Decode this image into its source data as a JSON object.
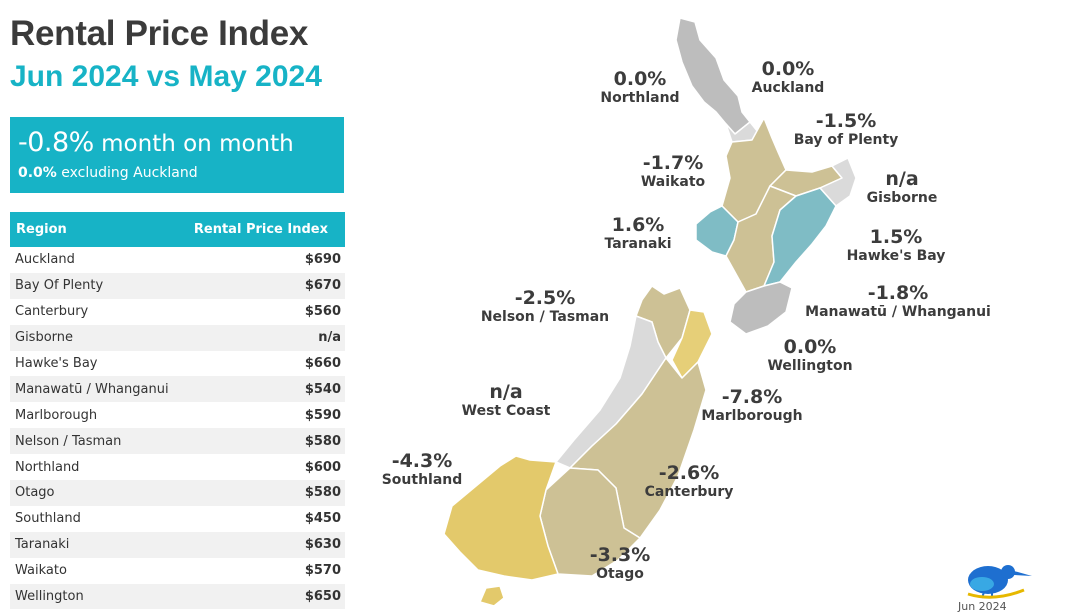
{
  "header": {
    "title": "Rental Price Index",
    "subtitle": "Jun 2024 vs May 2024"
  },
  "summary": {
    "change": "-0.8%",
    "change_suffix": " month on month",
    "excl_value": "0.0%",
    "excl_suffix": " excluding Auckland"
  },
  "table": {
    "col_region": "Region",
    "col_index": "Rental Price Index",
    "rows": [
      {
        "region": "Auckland",
        "value": "$690"
      },
      {
        "region": "Bay Of Plenty",
        "value": "$670"
      },
      {
        "region": "Canterbury",
        "value": "$560"
      },
      {
        "region": "Gisborne",
        "value": "n/a"
      },
      {
        "region": "Hawke's Bay",
        "value": "$660"
      },
      {
        "region": "Manawatū / Whanganui",
        "value": "$540"
      },
      {
        "region": "Marlborough",
        "value": "$590"
      },
      {
        "region": "Nelson / Tasman",
        "value": "$580"
      },
      {
        "region": "Northland",
        "value": "$600"
      },
      {
        "region": "Otago",
        "value": "$580"
      },
      {
        "region": "Southland",
        "value": "$450"
      },
      {
        "region": "Taranaki",
        "value": "$630"
      },
      {
        "region": "Waikato",
        "value": "$570"
      },
      {
        "region": "Wellington",
        "value": "$650"
      }
    ]
  },
  "map": {
    "colors": {
      "grey": "#bdbdbd",
      "light_grey": "#dadada",
      "tan": "#cdc195",
      "teal": "#7fbcc5",
      "yellow": "#e6cf78",
      "gold": "#e3c96b",
      "border": "#ffffff"
    },
    "regions": {
      "northland": {
        "change": "0.0%",
        "name": "Northland"
      },
      "auckland": {
        "change": "0.0%",
        "name": "Auckland"
      },
      "bay_of_plenty": {
        "change": "-1.5%",
        "name": "Bay of Plenty"
      },
      "waikato": {
        "change": "-1.7%",
        "name": "Waikato"
      },
      "gisborne": {
        "change": "n/a",
        "name": "Gisborne"
      },
      "taranaki": {
        "change": "1.6%",
        "name": "Taranaki"
      },
      "hawkes_bay": {
        "change": "1.5%",
        "name": "Hawke's Bay"
      },
      "manawatu": {
        "change": "-1.8%",
        "name": "Manawatū / Whanganui"
      },
      "nelson": {
        "change": "-2.5%",
        "name": "Nelson / Tasman"
      },
      "wellington": {
        "change": "0.0%",
        "name": "Wellington"
      },
      "west_coast": {
        "change": "n/a",
        "name": "West Coast"
      },
      "marlborough": {
        "change": "-7.8%",
        "name": "Marlborough"
      },
      "southland": {
        "change": "-4.3%",
        "name": "Southland"
      },
      "canterbury": {
        "change": "-2.6%",
        "name": "Canterbury"
      },
      "otago": {
        "change": "-3.3%",
        "name": "Otago"
      }
    }
  },
  "footer": {
    "logo_icon": "kiwi-bird-icon",
    "date": "Jun 2024"
  }
}
